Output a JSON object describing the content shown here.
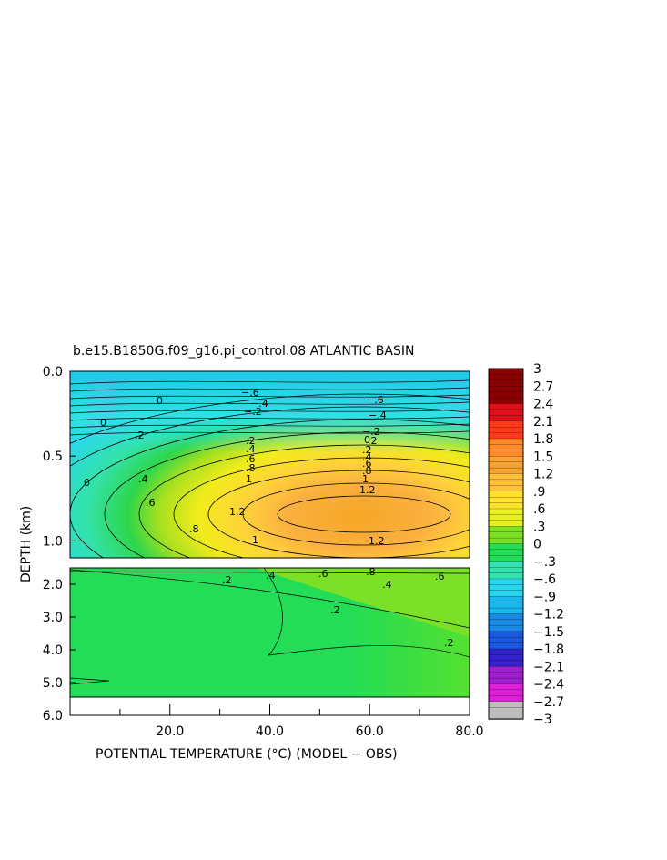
{
  "chart_data": {
    "type": "heatmap",
    "title": "b.e15.B1850G.f09_g16.pi_control.08 ATLANTIC BASIN",
    "xlabel": "POTENTIAL TEMPERATURE (°C) (MODEL − OBS)",
    "ylabel": "DEPTH (km)",
    "xlim": [
      0,
      80
    ],
    "x_ticks": [
      "20.0",
      "40.0",
      "60.0",
      "80.0"
    ],
    "upper_panel": {
      "ylim": [
        0.0,
        1.1
      ],
      "y_ticks": [
        "0.0",
        "0.5",
        "1.0"
      ]
    },
    "lower_panel": {
      "ylim": [
        1.5,
        6.0
      ],
      "y_ticks": [
        "2.0",
        "3.0",
        "4.0",
        "5.0",
        "6.0"
      ]
    },
    "colorbar": {
      "labels": [
        "3",
        "2.7",
        "2.4",
        "2.1",
        "1.8",
        "1.5",
        "1.2",
        ".9",
        ".6",
        ".3",
        "0",
        "−.3",
        "−.6",
        "−.9",
        "−1.2",
        "−1.5",
        "−1.8",
        "−2.1",
        "−2.4",
        "−2.7",
        "−3"
      ],
      "range": [
        -3,
        3
      ]
    },
    "contour_labels_upper": [
      "−.6",
      "−.4",
      "−.2",
      "0",
      "−.6",
      "−.4",
      "−.2",
      "0",
      ".2",
      ".4",
      ".6",
      ".8",
      "1",
      "1.2",
      ".2",
      ".4",
      ".6",
      ".8",
      "1",
      "1.2",
      ".2",
      ".4",
      ".6",
      ".8",
      "1.2",
      "1",
      "0",
      "0",
      ".2"
    ],
    "contour_labels_lower": [
      ".2",
      ".4",
      ".6",
      ".8",
      ".2",
      ".2",
      ".6",
      ".4"
    ]
  }
}
